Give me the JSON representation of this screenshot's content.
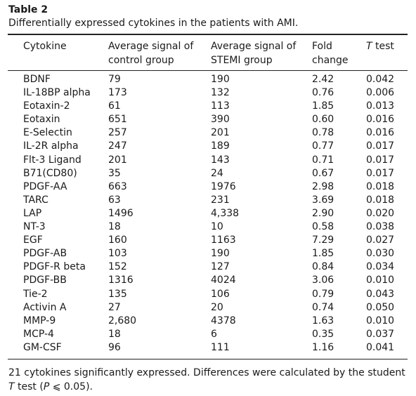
{
  "table_label": "Table 2",
  "caption": "Differentially expressed cytokines in the patients with AMI.",
  "headers": {
    "cytokine": "Cytokine",
    "control": "Average signal of\ncontrol group",
    "stemi": "Average signal of\nSTEMI group",
    "fold": "Fold\nchange",
    "ttest_italic": "T",
    "ttest_rest": " test"
  },
  "rows": [
    [
      "BDNF",
      "79",
      "190",
      "2.42",
      "0.042"
    ],
    [
      "IL-18BP alpha",
      "173",
      "132",
      "0.76",
      "0.006"
    ],
    [
      "Eotaxin-2",
      "61",
      "113",
      "1.85",
      "0.013"
    ],
    [
      "Eotaxin",
      "651",
      "390",
      "0.60",
      "0.016"
    ],
    [
      "E-Selectin",
      "257",
      "201",
      "0.78",
      "0.016"
    ],
    [
      "IL-2R alpha",
      "247",
      "189",
      "0.77",
      "0.017"
    ],
    [
      "Flt-3 Ligand",
      "201",
      "143",
      "0.71",
      "0.017"
    ],
    [
      "B71(CD80)",
      "35",
      "24",
      "0.67",
      "0.017"
    ],
    [
      "PDGF-AA",
      "663",
      "1976",
      "2.98",
      "0.018"
    ],
    [
      "TARC",
      "63",
      "231",
      "3.69",
      "0.018"
    ],
    [
      "LAP",
      "1496",
      "4,338",
      "2.90",
      "0.020"
    ],
    [
      "NT-3",
      "18",
      "10",
      "0.58",
      "0.038"
    ],
    [
      "EGF",
      "160",
      "1163",
      "7.29",
      "0.027"
    ],
    [
      "PDGF-AB",
      "103",
      "190",
      "1.85",
      "0.030"
    ],
    [
      "PDGF-R beta",
      "152",
      "127",
      "0.84",
      "0.034"
    ],
    [
      "PDGF-BB",
      "1316",
      "4024",
      "3.06",
      "0.010"
    ],
    [
      "Tie-2",
      "135",
      "106",
      "0.79",
      "0.043"
    ],
    [
      "Activin A",
      "27",
      "20",
      "0.74",
      "0.050"
    ],
    [
      "MMP-9",
      "2,680",
      "4378",
      "1.63",
      "0.010"
    ],
    [
      "MCP-4",
      "18",
      "6",
      "0.35",
      "0.037"
    ],
    [
      "GM-CSF",
      "96",
      "111",
      "1.16",
      "0.041"
    ]
  ],
  "footnote": {
    "part1": "21 cytokines significantly expressed. Differences were calculated by the student ",
    "italic_t": "T",
    "part2": " test (",
    "italic_p": "P",
    "part3": " ⩽ 0.05)."
  }
}
